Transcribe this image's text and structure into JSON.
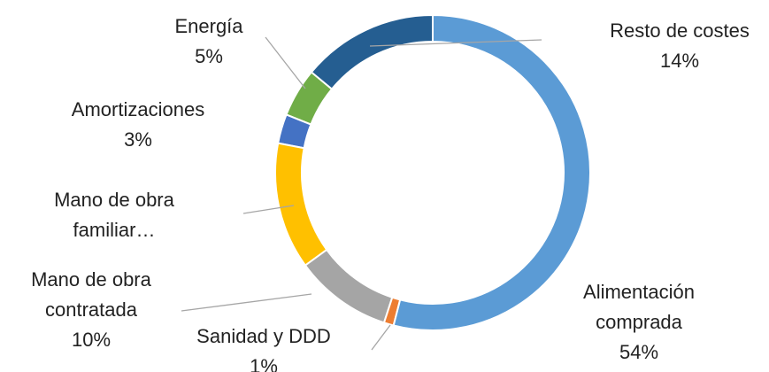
{
  "chart_data": {
    "type": "donut",
    "categories": [
      "Alimentación comprada",
      "Sanidad y DDD",
      "Mano de obra contratada",
      "Mano de obra familiar…",
      "Amortizaciones",
      "Energía",
      "Resto de costes"
    ],
    "values": [
      54,
      1,
      10,
      13,
      3,
      5,
      14
    ],
    "value_labels": [
      "54%",
      "1%",
      "10%",
      null,
      "3%",
      "5%",
      "14%"
    ],
    "colors": [
      "#5b9bd5",
      "#ed7d31",
      "#a5a5a5",
      "#ffc000",
      "#4472c4",
      "#70ad47",
      "#255e91"
    ]
  }
}
